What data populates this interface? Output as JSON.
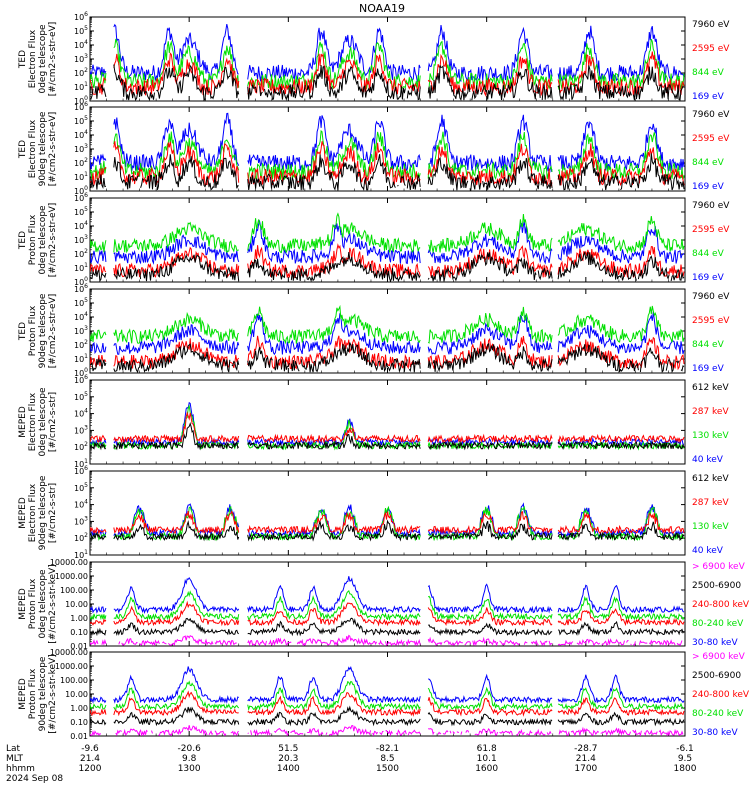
{
  "title": "NOAA19",
  "panels": [
    {
      "ylabel_lines": [
        "TED",
        "Electron Flux",
        "0deg telescope",
        "[#/cm2-s-str-eV]"
      ],
      "ytick_labels": [
        "10^0",
        "10^1",
        "10^2",
        "10^3",
        "10^4",
        "10^5",
        "10^6"
      ],
      "ylim": [
        1,
        1000000
      ],
      "log": true,
      "legend": [
        {
          "label": "7960 eV",
          "color": "#000000"
        },
        {
          "label": "2595 eV",
          "color": "#ff0000"
        },
        {
          "label": "844 eV",
          "color": "#00e000"
        },
        {
          "label": "169 eV",
          "color": "#0000ff"
        }
      ]
    },
    {
      "ylabel_lines": [
        "TED",
        "Electron Flux",
        "90deg telescope",
        "[#/cm2-s-str-eV]"
      ],
      "ytick_labels": [
        "10^0",
        "10^1",
        "10^2",
        "10^3",
        "10^4",
        "10^5",
        "10^6"
      ],
      "ylim": [
        1,
        1000000
      ],
      "log": true,
      "legend": [
        {
          "label": "7960 eV",
          "color": "#000000"
        },
        {
          "label": "2595 eV",
          "color": "#ff0000"
        },
        {
          "label": "844 eV",
          "color": "#00e000"
        },
        {
          "label": "169 eV",
          "color": "#0000ff"
        }
      ]
    },
    {
      "ylabel_lines": [
        "TED",
        "Proton Flux",
        "0deg telescope",
        "[#/cm2-s-str-eV]"
      ],
      "ytick_labels": [
        "10^0",
        "10^1",
        "10^2",
        "10^3",
        "10^4",
        "10^5",
        "10^6"
      ],
      "ylim": [
        1,
        1000000
      ],
      "log": true,
      "legend": [
        {
          "label": "7960 eV",
          "color": "#000000"
        },
        {
          "label": "2595 eV",
          "color": "#ff0000"
        },
        {
          "label": "844 eV",
          "color": "#00e000"
        },
        {
          "label": "169 eV",
          "color": "#0000ff"
        }
      ]
    },
    {
      "ylabel_lines": [
        "TED",
        "Proton Flux",
        "90deg telescope",
        "[#/cm2-s-str-eV]"
      ],
      "ytick_labels": [
        "10^0",
        "10^1",
        "10^2",
        "10^3",
        "10^4",
        "10^5",
        "10^6"
      ],
      "ylim": [
        1,
        1000000
      ],
      "log": true,
      "legend": [
        {
          "label": "7960 eV",
          "color": "#000000"
        },
        {
          "label": "2595 eV",
          "color": "#ff0000"
        },
        {
          "label": "844 eV",
          "color": "#00e000"
        },
        {
          "label": "169 eV",
          "color": "#0000ff"
        }
      ]
    },
    {
      "ylabel_lines": [
        "MEPED",
        "Electron Flux",
        "0deg telescope",
        "[#/cm2-s-str]"
      ],
      "ytick_labels": [
        "10^1",
        "10^2",
        "10^3",
        "10^4",
        "10^5",
        "10^6"
      ],
      "ylim": [
        10,
        1000000
      ],
      "log": true,
      "legend": [
        {
          "label": "612 keV",
          "color": "#000000"
        },
        {
          "label": "287 keV",
          "color": "#ff0000"
        },
        {
          "label": "130 keV",
          "color": "#00e000"
        },
        {
          "label": "40 keV",
          "color": "#0000ff"
        }
      ]
    },
    {
      "ylabel_lines": [
        "MEPED",
        "Electron Flux",
        "90deg telescope",
        "[#/cm2-s-str]"
      ],
      "ytick_labels": [
        "10^1",
        "10^2",
        "10^3",
        "10^4",
        "10^5",
        "10^6"
      ],
      "ylim": [
        10,
        1000000
      ],
      "log": true,
      "legend": [
        {
          "label": "612 keV",
          "color": "#000000"
        },
        {
          "label": "287 keV",
          "color": "#ff0000"
        },
        {
          "label": "130 keV",
          "color": "#00e000"
        },
        {
          "label": "40 keV",
          "color": "#0000ff"
        }
      ]
    },
    {
      "ylabel_lines": [
        "MEPED",
        "Proton Flux",
        "0deg telescope",
        "[#/cm2-s-str-keV]"
      ],
      "ytick_labels": [
        "0.01",
        "0.10",
        "1.00",
        "10.00",
        "100.00",
        "1000.00",
        "10000.00"
      ],
      "ylim": [
        0.01,
        10000
      ],
      "log": true,
      "legend": [
        {
          "label": "> 6900 keV",
          "color": "#ff00ff"
        },
        {
          "label": "2500-6900",
          "color": "#000000"
        },
        {
          "label": "240-800 keV",
          "color": "#ff0000"
        },
        {
          "label": "80-240 keV",
          "color": "#00e000"
        },
        {
          "label": "30-80 keV",
          "color": "#0000ff"
        }
      ]
    },
    {
      "ylabel_lines": [
        "MEPED",
        "Proton Flux",
        "90deg telescope",
        "[#/cm2-s-str-keV]"
      ],
      "ytick_labels": [
        "0.01",
        "0.10",
        "1.00",
        "10.00",
        "100.00",
        "1000.00",
        "10000.00"
      ],
      "ylim": [
        0.01,
        10000
      ],
      "log": true,
      "legend": [
        {
          "label": "> 6900 keV",
          "color": "#ff00ff"
        },
        {
          "label": "2500-6900",
          "color": "#000000"
        },
        {
          "label": "240-800 keV",
          "color": "#ff0000"
        },
        {
          "label": "80-240 keV",
          "color": "#00e000"
        },
        {
          "label": "30-80 keV",
          "color": "#0000ff"
        }
      ]
    }
  ],
  "x_axis": {
    "row_labels": [
      "Lat",
      "MLT",
      "hhmm"
    ],
    "date": "2024 Sep 08",
    "ticks": [
      {
        "lat": "-9.6",
        "mlt": "21.4",
        "hhmm": "1200"
      },
      {
        "lat": "-20.6",
        "mlt": "9.8",
        "hhmm": "1300"
      },
      {
        "lat": "51.5",
        "mlt": "20.3",
        "hhmm": "1400"
      },
      {
        "lat": "-82.1",
        "mlt": "8.5",
        "hhmm": "1500"
      },
      {
        "lat": "61.8",
        "mlt": "10.1",
        "hhmm": "1600"
      },
      {
        "lat": "-28.7",
        "mlt": "21.4",
        "hhmm": "1700"
      },
      {
        "lat": "-6.1",
        "mlt": "9.5",
        "hhmm": "1800"
      }
    ]
  },
  "chart_data": {
    "type": "line",
    "title": "NOAA19",
    "x_range_hhmm": [
      "1200",
      "1800"
    ],
    "note_passes_hhmm": [
      "1300",
      "1447",
      "1637",
      "1730"
    ],
    "series_peaks": [
      {
        "panel": 1,
        "name": "169 eV",
        "peak_times": [
          "1210",
          "1257",
          "1323",
          "1452",
          "1715",
          "1728"
        ],
        "peak_values": [
          100000,
          10000,
          100000,
          10000,
          10000,
          100000
        ]
      },
      {
        "panel": 5,
        "name": "40 keV",
        "peak_times": [
          "1300",
          "1447"
        ],
        "peak_values": [
          300000,
          40000
        ]
      },
      {
        "panel": 7,
        "name": "30-80 keV",
        "peak_times": [
          "1300",
          "1447",
          "1728"
        ],
        "peak_values": [
          200,
          300,
          300
        ]
      }
    ]
  }
}
